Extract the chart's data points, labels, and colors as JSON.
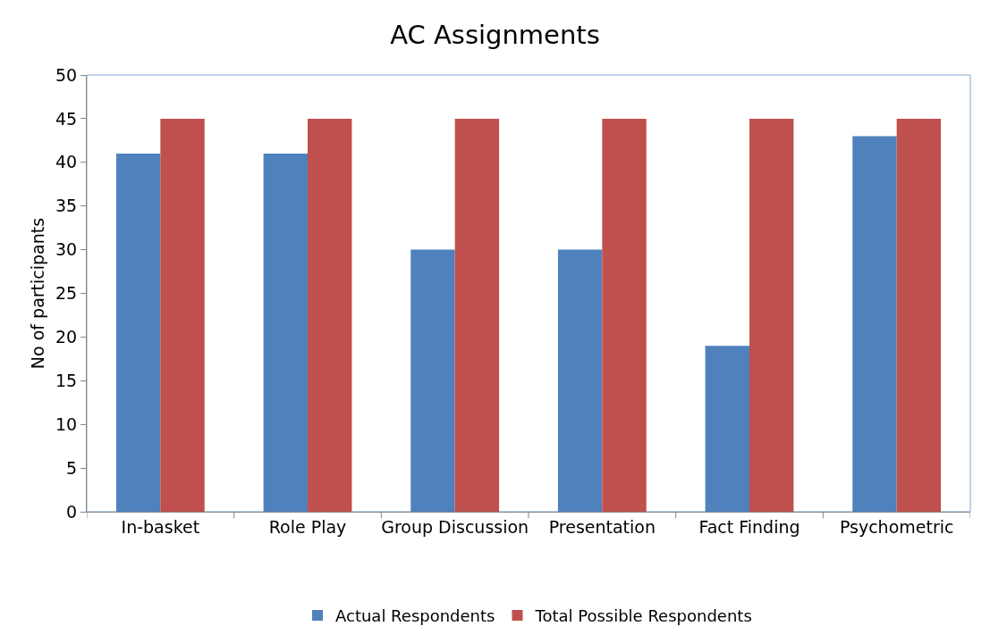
{
  "chart_data": {
    "type": "bar",
    "title": "AC Assignments",
    "ylabel": "No of participants",
    "categories": [
      "In-basket",
      "Role Play",
      "Group Discussion",
      "Presentation",
      "Fact Finding",
      "Psychometric"
    ],
    "series": [
      {
        "name": "Actual Respondents",
        "color": "#4f81bd",
        "values": [
          41,
          41,
          30,
          30,
          19,
          43
        ]
      },
      {
        "name": "Total Possible Respondents",
        "color": "#c0504d",
        "values": [
          45,
          45,
          45,
          45,
          45,
          45
        ]
      }
    ],
    "ylim": [
      0,
      50
    ],
    "yticks": [
      0,
      5,
      10,
      15,
      20,
      25,
      30,
      35,
      40,
      45,
      50
    ],
    "grid": false,
    "legend": "bottom"
  }
}
